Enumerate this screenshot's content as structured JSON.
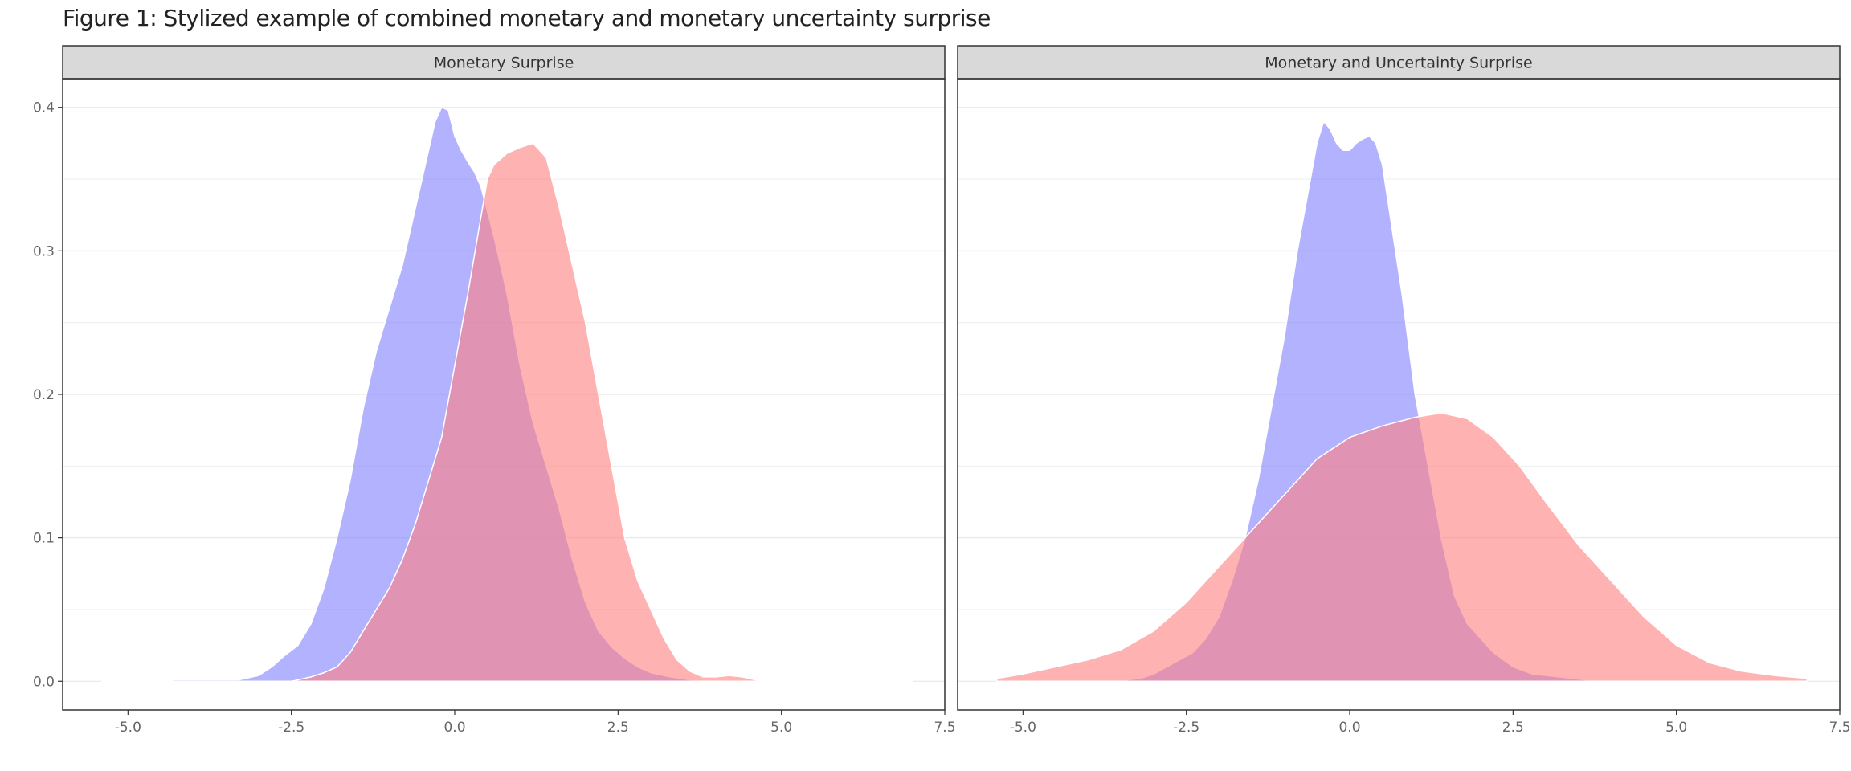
{
  "figure": {
    "title": "Figure 1: Stylized example of combined monetary and monetary uncertainty surprise"
  },
  "colors": {
    "series_a": "#7f7fff",
    "series_b": "#ff7f7f",
    "strip_bg": "#d9d9d9",
    "grid": "#ebebeb"
  },
  "chart_data": [
    {
      "type": "area",
      "panel_title": "Monetary Surprise",
      "xlim": [
        -6.0,
        7.5
      ],
      "ylim": [
        -0.02,
        0.42
      ],
      "x_ticks": [
        -5.0,
        -2.5,
        0.0,
        2.5,
        5.0,
        7.5
      ],
      "x_tick_labels": [
        "-5.0",
        "-2.5",
        "0.0",
        "2.5",
        "5.0",
        "7.5"
      ],
      "y_ticks": [
        0.0,
        0.1,
        0.2,
        0.3,
        0.4
      ],
      "y_tick_labels": [
        "0.0",
        "0.1",
        "0.2",
        "0.3",
        "0.4"
      ],
      "grid": true,
      "series": [
        {
          "color": "#7f7fff",
          "x": [
            -5.4,
            -4.5,
            -4.3,
            -3.3,
            -3.0,
            -2.8,
            -2.6,
            -2.4,
            -2.2,
            -2.0,
            -1.8,
            -1.6,
            -1.4,
            -1.2,
            -1.0,
            -0.8,
            -0.6,
            -0.4,
            -0.3,
            -0.2,
            -0.1,
            0.0,
            0.1,
            0.2,
            0.3,
            0.4,
            0.6,
            0.8,
            1.0,
            1.2,
            1.4,
            1.6,
            1.8,
            2.0,
            2.2,
            2.4,
            2.6,
            2.8,
            3.0,
            3.3,
            3.6,
            4.0,
            7.0
          ],
          "values": [
            0.0,
            0.0,
            0.001,
            0.001,
            0.004,
            0.01,
            0.018,
            0.025,
            0.04,
            0.065,
            0.1,
            0.14,
            0.19,
            0.23,
            0.26,
            0.29,
            0.33,
            0.37,
            0.39,
            0.4,
            0.398,
            0.38,
            0.37,
            0.362,
            0.355,
            0.345,
            0.31,
            0.27,
            0.22,
            0.18,
            0.15,
            0.12,
            0.085,
            0.055,
            0.035,
            0.024,
            0.016,
            0.01,
            0.006,
            0.003,
            0.001,
            0.0,
            0.0
          ]
        },
        {
          "color": "#ff7f7f",
          "x": [
            -2.5,
            -2.2,
            -2.0,
            -1.8,
            -1.6,
            -1.4,
            -1.2,
            -1.0,
            -0.8,
            -0.6,
            -0.4,
            -0.2,
            0.0,
            0.2,
            0.35,
            0.5,
            0.6,
            0.8,
            1.0,
            1.2,
            1.4,
            1.6,
            1.8,
            2.0,
            2.2,
            2.4,
            2.6,
            2.8,
            3.0,
            3.2,
            3.4,
            3.6,
            3.8,
            4.0,
            4.2,
            4.4,
            4.6,
            4.8
          ],
          "values": [
            0.0,
            0.003,
            0.006,
            0.01,
            0.02,
            0.035,
            0.05,
            0.065,
            0.085,
            0.11,
            0.14,
            0.17,
            0.22,
            0.27,
            0.31,
            0.35,
            0.36,
            0.368,
            0.372,
            0.375,
            0.365,
            0.33,
            0.29,
            0.25,
            0.2,
            0.15,
            0.1,
            0.07,
            0.05,
            0.03,
            0.015,
            0.007,
            0.003,
            0.003,
            0.004,
            0.003,
            0.001,
            0.0
          ]
        }
      ]
    },
    {
      "type": "area",
      "panel_title": "Monetary and Uncertainty Surprise",
      "xlim": [
        -6.0,
        7.5
      ],
      "ylim": [
        -0.02,
        0.42
      ],
      "x_ticks": [
        -5.0,
        -2.5,
        0.0,
        2.5,
        5.0,
        7.5
      ],
      "x_tick_labels": [
        "-5.0",
        "-2.5",
        "0.0",
        "2.5",
        "5.0",
        "7.5"
      ],
      "y_ticks": [
        0.0,
        0.1,
        0.2,
        0.3,
        0.4
      ],
      "y_tick_labels": [
        "0.0",
        "0.1",
        "0.2",
        "0.3",
        "0.4"
      ],
      "grid": true,
      "series": [
        {
          "color": "#7f7fff",
          "x": [
            -3.6,
            -3.2,
            -3.0,
            -2.8,
            -2.6,
            -2.4,
            -2.2,
            -2.0,
            -1.8,
            -1.6,
            -1.4,
            -1.2,
            -1.0,
            -0.8,
            -0.6,
            -0.5,
            -0.4,
            -0.3,
            -0.2,
            -0.1,
            0.0,
            0.1,
            0.2,
            0.3,
            0.4,
            0.5,
            0.6,
            0.8,
            1.0,
            1.2,
            1.4,
            1.6,
            1.8,
            2.0,
            2.2,
            2.5,
            2.8,
            3.2,
            3.6,
            3.8
          ],
          "values": [
            0.0,
            0.002,
            0.005,
            0.01,
            0.015,
            0.02,
            0.03,
            0.045,
            0.07,
            0.1,
            0.14,
            0.19,
            0.24,
            0.3,
            0.35,
            0.375,
            0.39,
            0.385,
            0.375,
            0.37,
            0.37,
            0.375,
            0.378,
            0.38,
            0.375,
            0.36,
            0.33,
            0.27,
            0.2,
            0.15,
            0.1,
            0.06,
            0.04,
            0.03,
            0.02,
            0.01,
            0.005,
            0.003,
            0.001,
            0.0
          ]
        },
        {
          "color": "#ff7f7f",
          "x": [
            -5.4,
            -5.0,
            -4.5,
            -4.0,
            -3.5,
            -3.0,
            -2.5,
            -2.0,
            -1.5,
            -1.0,
            -0.5,
            0.0,
            0.5,
            1.0,
            1.4,
            1.8,
            2.2,
            2.6,
            3.0,
            3.5,
            4.0,
            4.5,
            5.0,
            5.5,
            6.0,
            6.5,
            7.0
          ],
          "values": [
            0.002,
            0.005,
            0.01,
            0.015,
            0.022,
            0.035,
            0.055,
            0.08,
            0.105,
            0.13,
            0.155,
            0.17,
            0.178,
            0.184,
            0.187,
            0.183,
            0.17,
            0.15,
            0.125,
            0.095,
            0.07,
            0.045,
            0.025,
            0.013,
            0.007,
            0.004,
            0.002
          ]
        }
      ]
    }
  ]
}
